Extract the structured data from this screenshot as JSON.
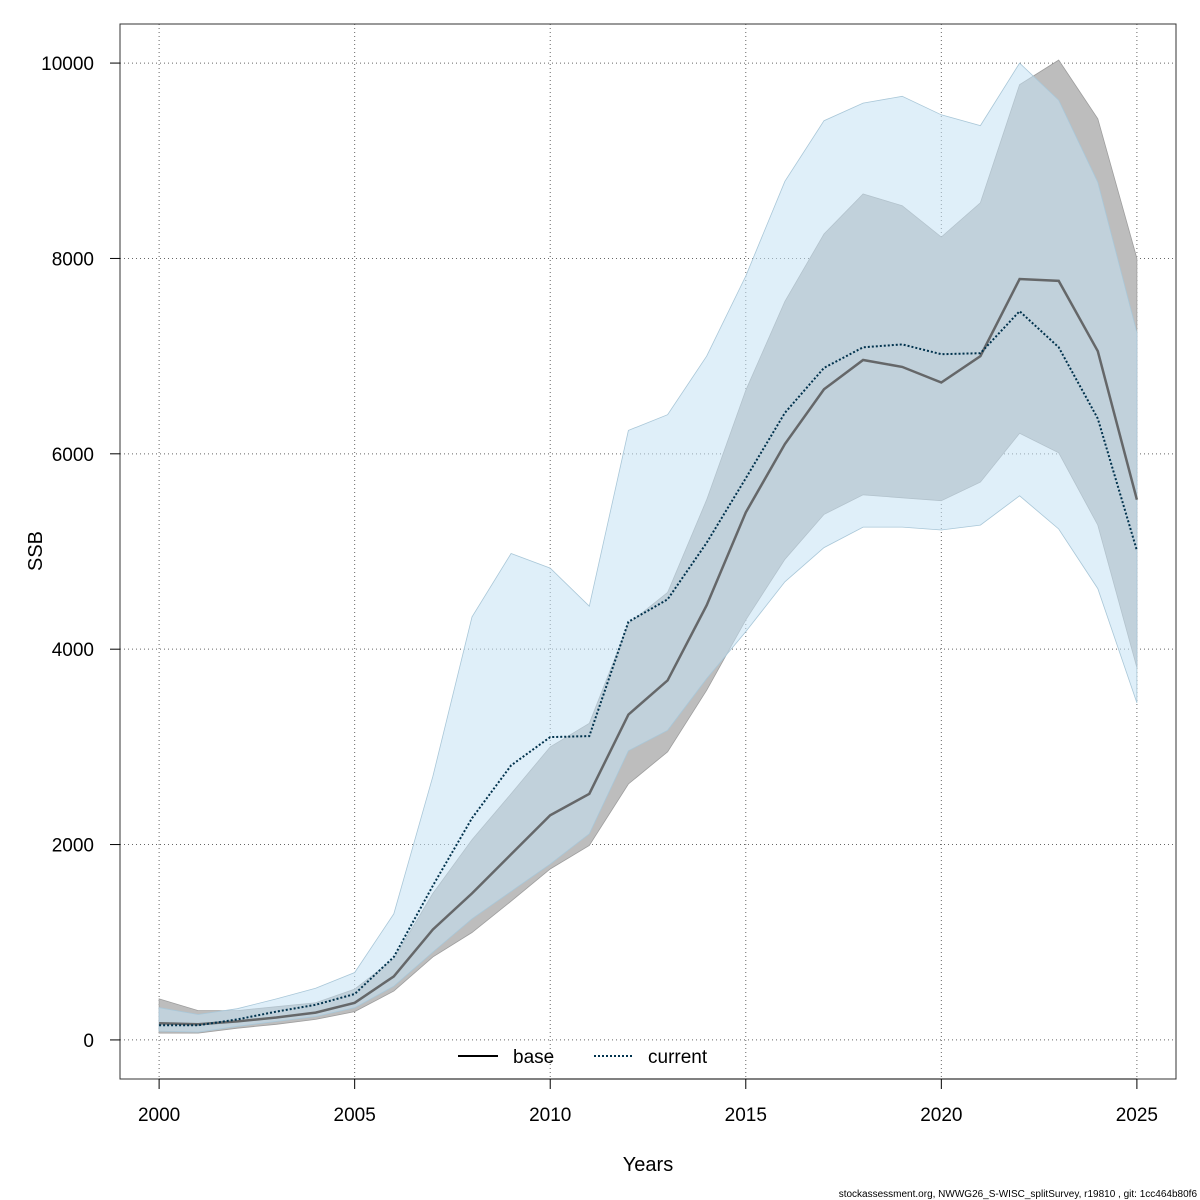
{
  "chart_data": {
    "type": "area",
    "title": "",
    "xlabel": "Years",
    "ylabel": "SSB",
    "xlim": [
      1999,
      2026
    ],
    "ylim": [
      -400,
      10400
    ],
    "x_ticks": [
      2000,
      2005,
      2010,
      2015,
      2020,
      2025
    ],
    "y_ticks": [
      0,
      2000,
      4000,
      6000,
      8000,
      10000
    ],
    "grid": true,
    "legend_position": "bottom-center",
    "x": [
      2000,
      2001,
      2002,
      2003,
      2004,
      2005,
      2006,
      2007,
      2008,
      2009,
      2010,
      2011,
      2012,
      2013,
      2014,
      2015,
      2016,
      2017,
      2018,
      2019,
      2020,
      2021,
      2022,
      2023,
      2024,
      2025
    ],
    "series": [
      {
        "name": "base",
        "color": "#555555",
        "band_color": "#bdbdbd",
        "line_style": "solid",
        "values": [
          170,
          160,
          190,
          230,
          280,
          380,
          650,
          1130,
          1500,
          1900,
          2300,
          2520,
          3330,
          3680,
          4450,
          5400,
          6100,
          6660,
          6960,
          6890,
          6730,
          7000,
          7790,
          7770,
          7050,
          5530
        ],
        "lower": [
          70,
          70,
          120,
          160,
          210,
          290,
          500,
          850,
          1100,
          1420,
          1750,
          1990,
          2620,
          2950,
          3580,
          4300,
          4920,
          5380,
          5580,
          5550,
          5520,
          5710,
          6210,
          6010,
          5270,
          3810
        ],
        "upper": [
          420,
          300,
          300,
          340,
          380,
          520,
          830,
          1500,
          2050,
          2520,
          3000,
          3240,
          4260,
          4580,
          5530,
          6650,
          7560,
          8250,
          8660,
          8540,
          8220,
          8570,
          9780,
          10030,
          9430,
          8000
        ]
      },
      {
        "name": "current",
        "color": "#00324d",
        "band_color": "#c4e2f4",
        "line_style": "dotted",
        "values": [
          150,
          150,
          210,
          290,
          360,
          470,
          850,
          1580,
          2270,
          2810,
          3100,
          3110,
          4280,
          4510,
          5090,
          5750,
          6420,
          6880,
          7090,
          7120,
          7020,
          7030,
          7460,
          7090,
          6360,
          5010
        ],
        "lower": [
          90,
          80,
          140,
          190,
          240,
          330,
          550,
          900,
          1240,
          1520,
          1800,
          2110,
          2960,
          3170,
          3700,
          4180,
          4690,
          5040,
          5250,
          5250,
          5220,
          5270,
          5570,
          5230,
          4620,
          3450
        ],
        "upper": [
          330,
          260,
          320,
          420,
          530,
          690,
          1290,
          2700,
          4330,
          4980,
          4830,
          4440,
          6240,
          6400,
          7000,
          7820,
          8790,
          9410,
          9590,
          9660,
          9470,
          9360,
          10000,
          9620,
          8780,
          7240
        ]
      }
    ]
  },
  "footer": {
    "text": "stockassessment.org, NWWG26_S-WISC_splitSurvey, r19810 , git: 1cc464b80f6"
  }
}
